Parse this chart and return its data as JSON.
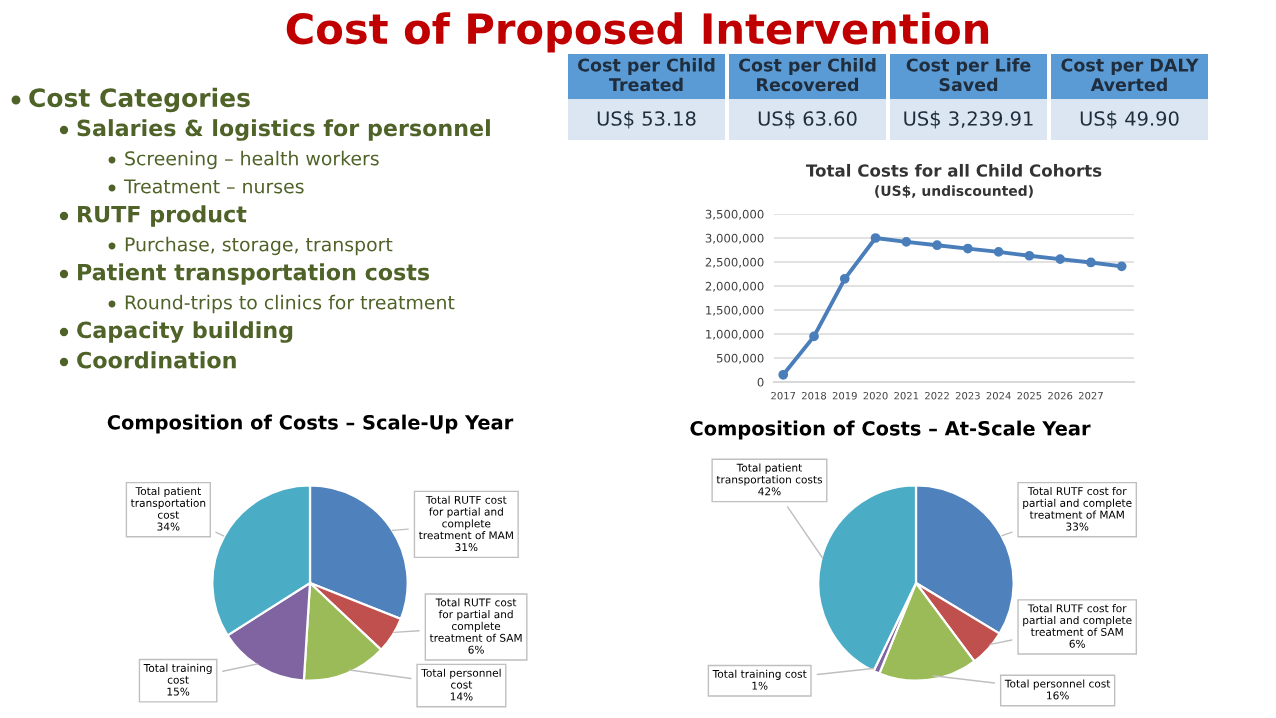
{
  "chart_data": [
    {
      "type": "other",
      "title": "Cost of Proposed Intervention",
      "annotations": [
        "Cost Categories",
        "Salaries & logistics for personnel",
        "Screening – health workers",
        "Treatment – nurses",
        "RUTF product",
        "Purchase, storage, transport",
        "Patient transportation costs",
        "Round-trips to clinics for treatment",
        "Capacity building",
        "Coordination"
      ]
    },
    {
      "type": "other",
      "categories": [
        "Cost per Child Treated",
        "Cost per Child Recovered",
        "Cost per Life Saved",
        "Cost per DALY Averted"
      ],
      "annotations": [
        "US$ 53.18",
        "US$ 63.60",
        "US$ 3,239.91",
        "US$ 49.90"
      ]
    },
    {
      "type": "line",
      "title": "Total Costs for all Child Cohorts",
      "subtitle": "(US$, undiscounted)",
      "categories": [
        "2017",
        "2018",
        "2019",
        "2020",
        "2021",
        "2022",
        "2023",
        "2024",
        "2025",
        "2026",
        "2027",
        null
      ],
      "series": [
        {
          "color": "#4a7ebb",
          "values": [
            150000,
            950000,
            2150000,
            3000000,
            2920000,
            2850000,
            2780000,
            2710000,
            2630000,
            2560000,
            2490000,
            2410000
          ]
        }
      ],
      "ylim": [
        0,
        3500000
      ],
      "yticks": [
        {
          "value": 0,
          "label": "0"
        },
        {
          "value": 500000,
          "label": "500,000"
        },
        {
          "value": 1000000,
          "label": "1,000,000"
        },
        {
          "value": 1500000,
          "label": "1,500,000"
        },
        {
          "value": 2000000,
          "label": "2,000,000"
        },
        {
          "value": 2500000,
          "label": "2,500,000"
        },
        {
          "value": 3000000,
          "label": "3,000,000"
        },
        {
          "value": 3500000,
          "label": "3,500,000"
        }
      ],
      "grid": "y",
      "marker": "circle"
    },
    {
      "type": "pie",
      "title": "Composition of Costs – Scale-Up Year",
      "categories": [
        "Total RUTF cost for partial and complete treatment of MAM",
        "Total RUTF cost for partial and complete treatment of SAM",
        "Total personnel cost",
        "Total training cost",
        "Total patient transportation cost"
      ],
      "values": [
        31,
        6,
        14,
        15,
        34
      ],
      "value_labels": [
        "31%",
        "6%",
        "14%",
        "15%",
        "34%"
      ],
      "colors": [
        "#4f81bd",
        "#c0504d",
        "#9bbb59",
        "#8064a2",
        "#4bacc6"
      ]
    },
    {
      "type": "pie",
      "title": "Composition of Costs – At-Scale Year",
      "categories": [
        "Total RUTF cost for partial and complete treatment of MAM",
        "Total RUTF cost for partial and complete treatment of SAM",
        "Total personnel cost",
        "Total training cost",
        "Total patient transportation costs"
      ],
      "values": [
        33,
        6,
        16,
        1,
        42
      ],
      "value_labels": [
        "33%",
        "6%",
        "16%",
        "1%",
        "42%"
      ],
      "colors": [
        "#4f81bd",
        "#c0504d",
        "#9bbb59",
        "#8064a2",
        "#4bacc6"
      ]
    }
  ]
}
